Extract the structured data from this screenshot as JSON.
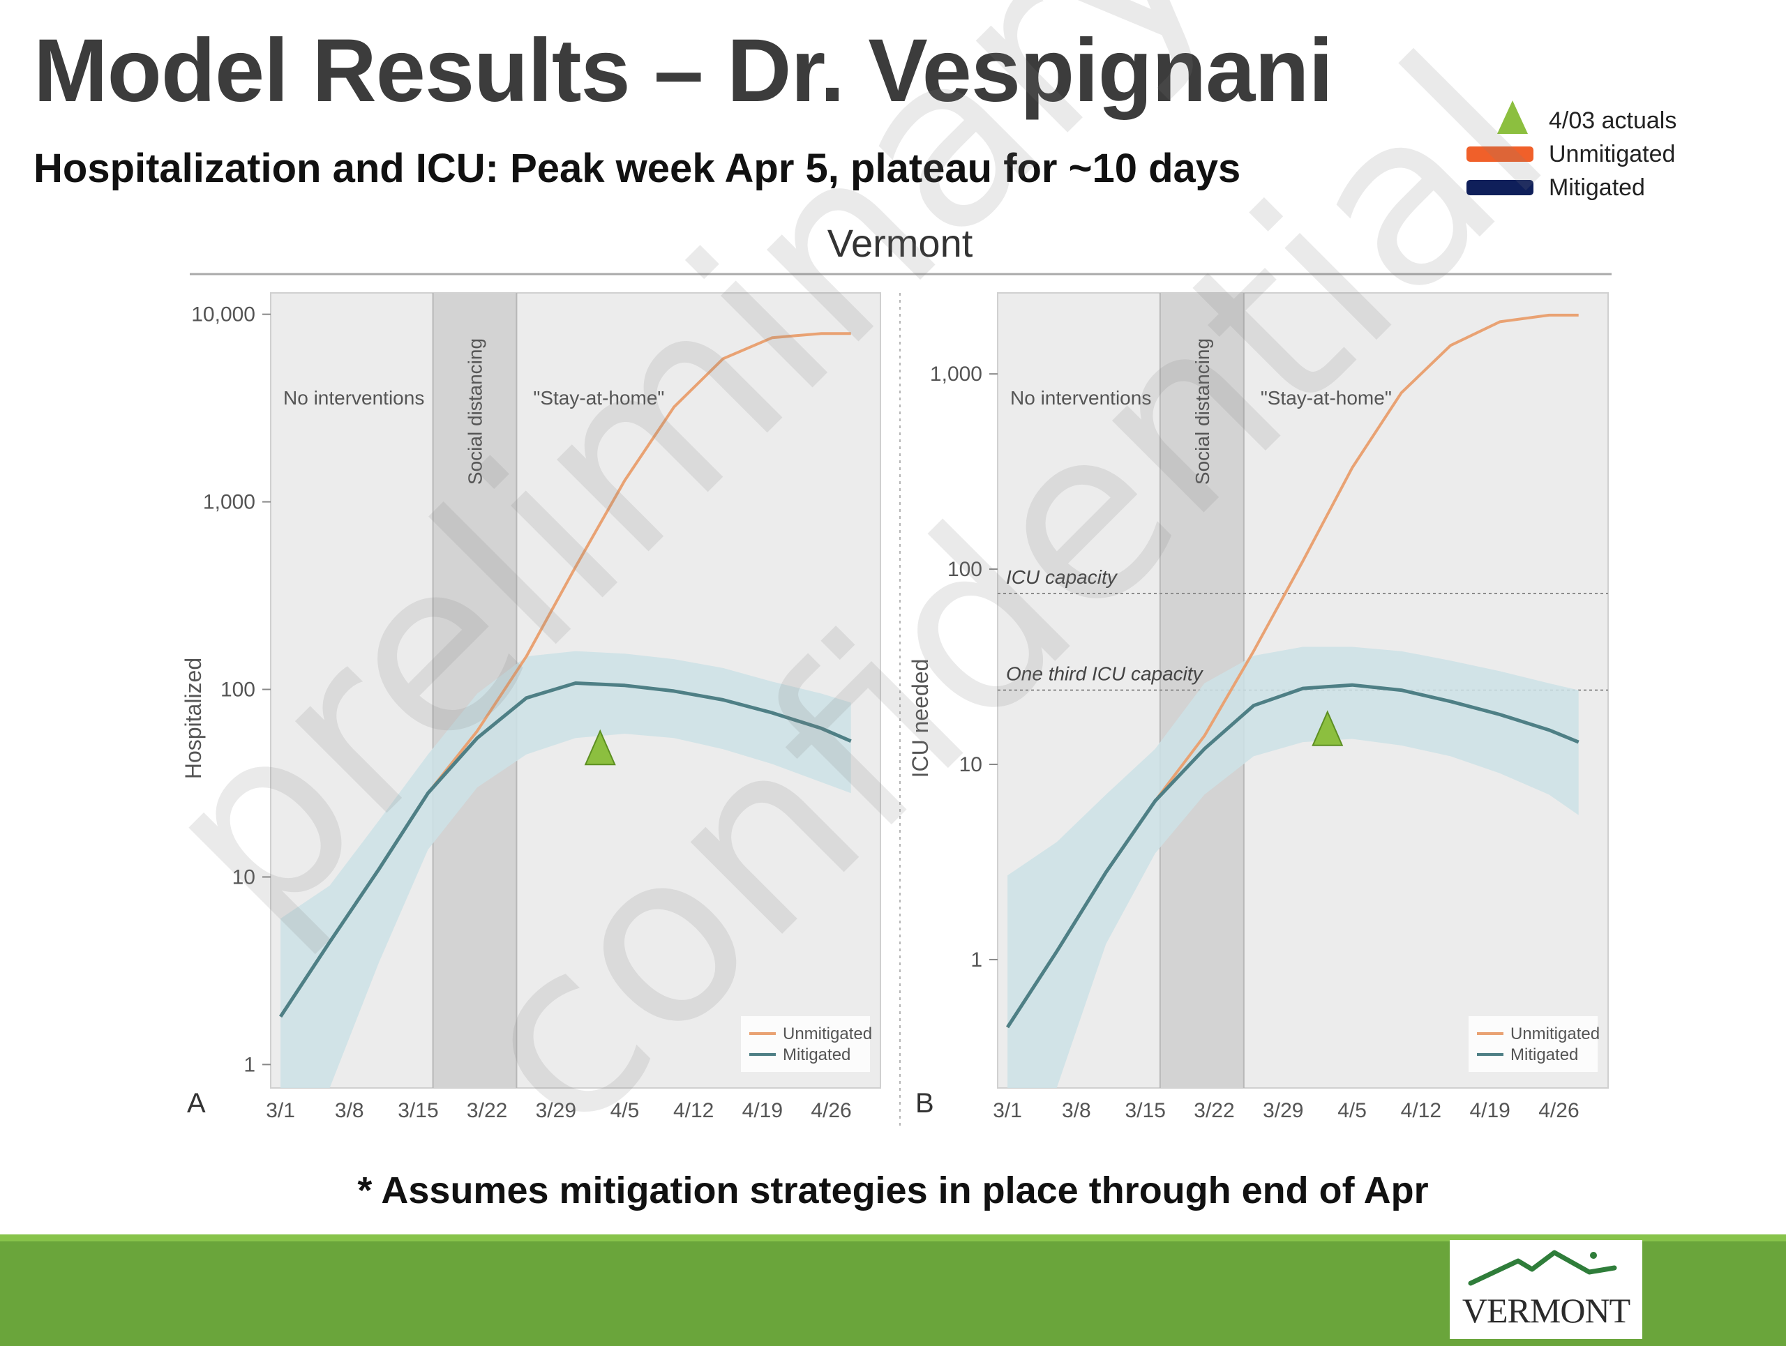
{
  "header": {
    "title": "Model Results – Dr. Vespignani",
    "subtitle": "Hospitalization and ICU:  Peak week Apr 5, plateau for ~10 days"
  },
  "legend": {
    "items": [
      {
        "label": "4/03 actuals",
        "shape": "triangle",
        "color": "#8cbf3f"
      },
      {
        "label": "Unmitigated",
        "shape": "bar",
        "color": "#f0602a"
      },
      {
        "label": "Mitigated",
        "shape": "bar",
        "color": "#0f1f5a"
      }
    ]
  },
  "figure_title": "Vermont",
  "footnote": "* Assumes mitigation strategies in place through end of Apr",
  "logo_text": "VERMONT",
  "watermark": "preliminary confidential",
  "colors": {
    "unmitigated_line": "#e9a273",
    "mitigated_line": "#4e7f85",
    "band": "#cde2e6",
    "plot_bg": "#ececec",
    "shade_social": "#d3d3d3",
    "actual_marker": "#8cbf3f",
    "footer_green": "#6aa53b"
  },
  "chart_data": [
    {
      "type": "line",
      "panel_label": "A",
      "ylabel": "Hospitalized",
      "xlabel": "",
      "yscale": "log",
      "ylim": [
        0.75,
        13000
      ],
      "yticks": [
        1,
        10,
        100,
        1000,
        10000
      ],
      "ytick_labels": [
        "1",
        "10",
        "100",
        "1,000",
        "10,000"
      ],
      "x_is_days_from": "3/1",
      "xlim": [
        -1,
        61
      ],
      "xticks": [
        0,
        7,
        14,
        21,
        28,
        35,
        42,
        49,
        56
      ],
      "xtick_labels": [
        "3/1",
        "3/8",
        "3/15",
        "3/22",
        "3/29",
        "4/5",
        "4/12",
        "4/19",
        "4/26"
      ],
      "regions": [
        {
          "label": "No interventions",
          "from": 0,
          "to": 15
        },
        {
          "label": "Social distancing",
          "from": 15.5,
          "to": 24,
          "shaded": true
        },
        {
          "label": "\"Stay-at-home\"",
          "from": 24,
          "to": 60
        }
      ],
      "series": [
        {
          "name": "Unmitigated",
          "x": [
            0,
            5,
            10,
            15,
            20,
            25,
            30,
            35,
            40,
            45,
            50,
            55,
            58
          ],
          "values": [
            1.8,
            4.5,
            11,
            28,
            60,
            150,
            450,
            1300,
            3200,
            5800,
            7500,
            7900,
            7900
          ]
        },
        {
          "name": "Mitigated",
          "x": [
            0,
            5,
            10,
            15,
            20,
            25,
            30,
            35,
            40,
            45,
            50,
            55,
            58
          ],
          "values": [
            1.8,
            4.5,
            11,
            28,
            55,
            90,
            108,
            105,
            98,
            88,
            75,
            62,
            53
          ]
        }
      ],
      "band_mitigated": {
        "x": [
          0,
          5,
          10,
          15,
          20,
          25,
          30,
          35,
          40,
          45,
          50,
          55,
          58
        ],
        "lower": [
          0.75,
          0.75,
          3.5,
          14,
          30,
          45,
          55,
          58,
          55,
          48,
          40,
          32,
          28
        ],
        "upper": [
          6,
          9,
          20,
          45,
          95,
          150,
          160,
          155,
          145,
          130,
          110,
          95,
          85
        ]
      },
      "actuals": [
        {
          "x": 32.5,
          "value": 48,
          "label": "4/03 actuals"
        }
      ],
      "legend": [
        "Unmitigated",
        "Mitigated"
      ]
    },
    {
      "type": "line",
      "panel_label": "B",
      "ylabel": "ICU needed",
      "xlabel": "",
      "yscale": "log",
      "ylim": [
        0.22,
        2600
      ],
      "yticks": [
        1,
        10,
        100,
        1000
      ],
      "ytick_labels": [
        "1",
        "10",
        "100",
        "1,000"
      ],
      "x_is_days_from": "3/1",
      "xlim": [
        -1,
        61
      ],
      "xticks": [
        0,
        7,
        14,
        21,
        28,
        35,
        42,
        49,
        56
      ],
      "xtick_labels": [
        "3/1",
        "3/8",
        "3/15",
        "3/22",
        "3/29",
        "4/5",
        "4/12",
        "4/19",
        "4/26"
      ],
      "regions": [
        {
          "label": "No interventions",
          "from": 0,
          "to": 15
        },
        {
          "label": "Social distancing",
          "from": 15.5,
          "to": 24,
          "shaded": true
        },
        {
          "label": "\"Stay-at-home\"",
          "from": 24,
          "to": 60
        }
      ],
      "reference_lines": [
        {
          "label": "ICU capacity",
          "value": 75
        },
        {
          "label": "One third ICU capacity",
          "value": 24
        }
      ],
      "series": [
        {
          "name": "Unmitigated",
          "x": [
            0,
            5,
            10,
            15,
            20,
            25,
            30,
            35,
            40,
            45,
            50,
            55,
            58
          ],
          "values": [
            0.45,
            1.1,
            2.8,
            6.5,
            14,
            38,
            110,
            330,
            800,
            1400,
            1850,
            2000,
            2000
          ]
        },
        {
          "name": "Mitigated",
          "x": [
            0,
            5,
            10,
            15,
            20,
            25,
            30,
            35,
            40,
            45,
            50,
            55,
            58
          ],
          "values": [
            0.45,
            1.1,
            2.8,
            6.5,
            12,
            20,
            24.5,
            25.5,
            24,
            21,
            18,
            15,
            13
          ]
        },
        {
          "name": "",
          "x": [],
          "values": []
        }
      ],
      "band_mitigated": {
        "x": [
          0,
          5,
          10,
          15,
          20,
          25,
          30,
          35,
          40,
          45,
          50,
          55,
          58
        ],
        "lower": [
          0.22,
          0.22,
          1.2,
          3.5,
          7,
          11,
          13,
          13.5,
          12.5,
          11,
          9,
          7,
          5.5
        ],
        "upper": [
          2.7,
          4,
          7,
          12,
          26,
          36,
          40,
          40,
          38,
          34,
          30,
          26,
          24
        ]
      },
      "actuals": [
        {
          "x": 32.5,
          "value": 15,
          "label": "4/03 actuals"
        }
      ],
      "legend": [
        "Unmitigated",
        "Mitigated"
      ]
    }
  ]
}
